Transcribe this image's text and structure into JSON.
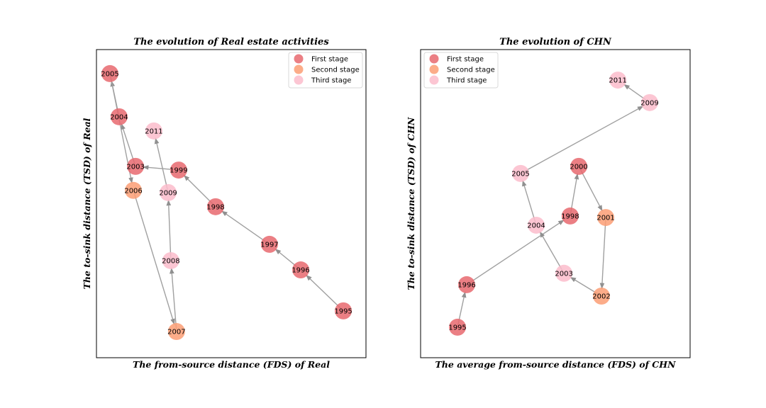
{
  "colors": {
    "first": "#e8696e",
    "second": "#fc9e74",
    "third": "#fbbccb",
    "edge": "#a0a0a0"
  },
  "chart_data": [
    {
      "type": "scatter",
      "title": "The evolution of Real estate activities",
      "xlabel": "The from-source distance (FDS) of Real",
      "ylabel": "The to-sink distance (TSD) of Real",
      "xlim": [
        0,
        100
      ],
      "ylim": [
        0,
        100
      ],
      "ticks_visible": false,
      "legend_position": "upper right",
      "legend": [
        {
          "label": "First stage",
          "stage": "first"
        },
        {
          "label": "Second stage",
          "stage": "second"
        },
        {
          "label": "Third stage",
          "stage": "third"
        }
      ],
      "nodes": [
        {
          "year": "1995",
          "x": 91.6,
          "y": 15.2,
          "stage": "first"
        },
        {
          "year": "1996",
          "x": 75.8,
          "y": 28.5,
          "stage": "first"
        },
        {
          "year": "1997",
          "x": 64.2,
          "y": 36.8,
          "stage": "first"
        },
        {
          "year": "1998",
          "x": 44.2,
          "y": 49.0,
          "stage": "first"
        },
        {
          "year": "1999",
          "x": 30.5,
          "y": 60.9,
          "stage": "first"
        },
        {
          "year": "2003",
          "x": 14.5,
          "y": 62.1,
          "stage": "first"
        },
        {
          "year": "2004",
          "x": 8.4,
          "y": 78.2,
          "stage": "first"
        },
        {
          "year": "2005",
          "x": 5.0,
          "y": 92.2,
          "stage": "first"
        },
        {
          "year": "2006",
          "x": 13.7,
          "y": 54.3,
          "stage": "second"
        },
        {
          "year": "2007",
          "x": 29.7,
          "y": 8.5,
          "stage": "second"
        },
        {
          "year": "2008",
          "x": 27.6,
          "y": 31.5,
          "stage": "third"
        },
        {
          "year": "2009",
          "x": 26.6,
          "y": 53.6,
          "stage": "third"
        },
        {
          "year": "2011",
          "x": 21.3,
          "y": 73.6,
          "stage": "third"
        }
      ],
      "edges": [
        [
          "1995",
          "1996"
        ],
        [
          "1996",
          "1997"
        ],
        [
          "1997",
          "1998"
        ],
        [
          "1998",
          "1999"
        ],
        [
          "1999",
          "2003"
        ],
        [
          "2003",
          "2004"
        ],
        [
          "2004",
          "2005"
        ],
        [
          "2005",
          "2006"
        ],
        [
          "2006",
          "2007"
        ],
        [
          "2007",
          "2008"
        ],
        [
          "2008",
          "2009"
        ],
        [
          "2009",
          "2011"
        ]
      ]
    },
    {
      "type": "scatter",
      "title": "The evolution of CHN",
      "xlabel": "The average from-source distance (FDS) of CHN",
      "ylabel": "The to-sink distance (TSD) of CHN",
      "xlim": [
        0,
        100
      ],
      "ylim": [
        0,
        100
      ],
      "ticks_visible": false,
      "legend_position": "upper left",
      "legend": [
        {
          "label": "First stage",
          "stage": "first"
        },
        {
          "label": "Second stage",
          "stage": "second"
        },
        {
          "label": "Third stage",
          "stage": "third"
        }
      ],
      "nodes": [
        {
          "year": "1995",
          "x": 13.7,
          "y": 9.9,
          "stage": "first"
        },
        {
          "year": "1996",
          "x": 17.1,
          "y": 23.7,
          "stage": "first"
        },
        {
          "year": "1998",
          "x": 55.5,
          "y": 46.0,
          "stage": "first"
        },
        {
          "year": "2000",
          "x": 58.7,
          "y": 62.1,
          "stage": "first"
        },
        {
          "year": "2001",
          "x": 68.7,
          "y": 45.5,
          "stage": "second"
        },
        {
          "year": "2002",
          "x": 67.1,
          "y": 20.0,
          "stage": "second"
        },
        {
          "year": "2003",
          "x": 53.2,
          "y": 27.4,
          "stage": "third"
        },
        {
          "year": "2004",
          "x": 42.9,
          "y": 43.0,
          "stage": "third"
        },
        {
          "year": "2005",
          "x": 37.1,
          "y": 59.8,
          "stage": "third"
        },
        {
          "year": "2009",
          "x": 85.0,
          "y": 82.8,
          "stage": "third"
        },
        {
          "year": "2011",
          "x": 73.2,
          "y": 90.1,
          "stage": "third"
        }
      ],
      "edges": [
        [
          "1995",
          "1996"
        ],
        [
          "1996",
          "1998"
        ],
        [
          "1998",
          "2000"
        ],
        [
          "2000",
          "2001"
        ],
        [
          "2001",
          "2002"
        ],
        [
          "2002",
          "2003"
        ],
        [
          "2003",
          "2004"
        ],
        [
          "2004",
          "2005"
        ],
        [
          "2005",
          "2009"
        ],
        [
          "2009",
          "2011"
        ]
      ]
    }
  ]
}
